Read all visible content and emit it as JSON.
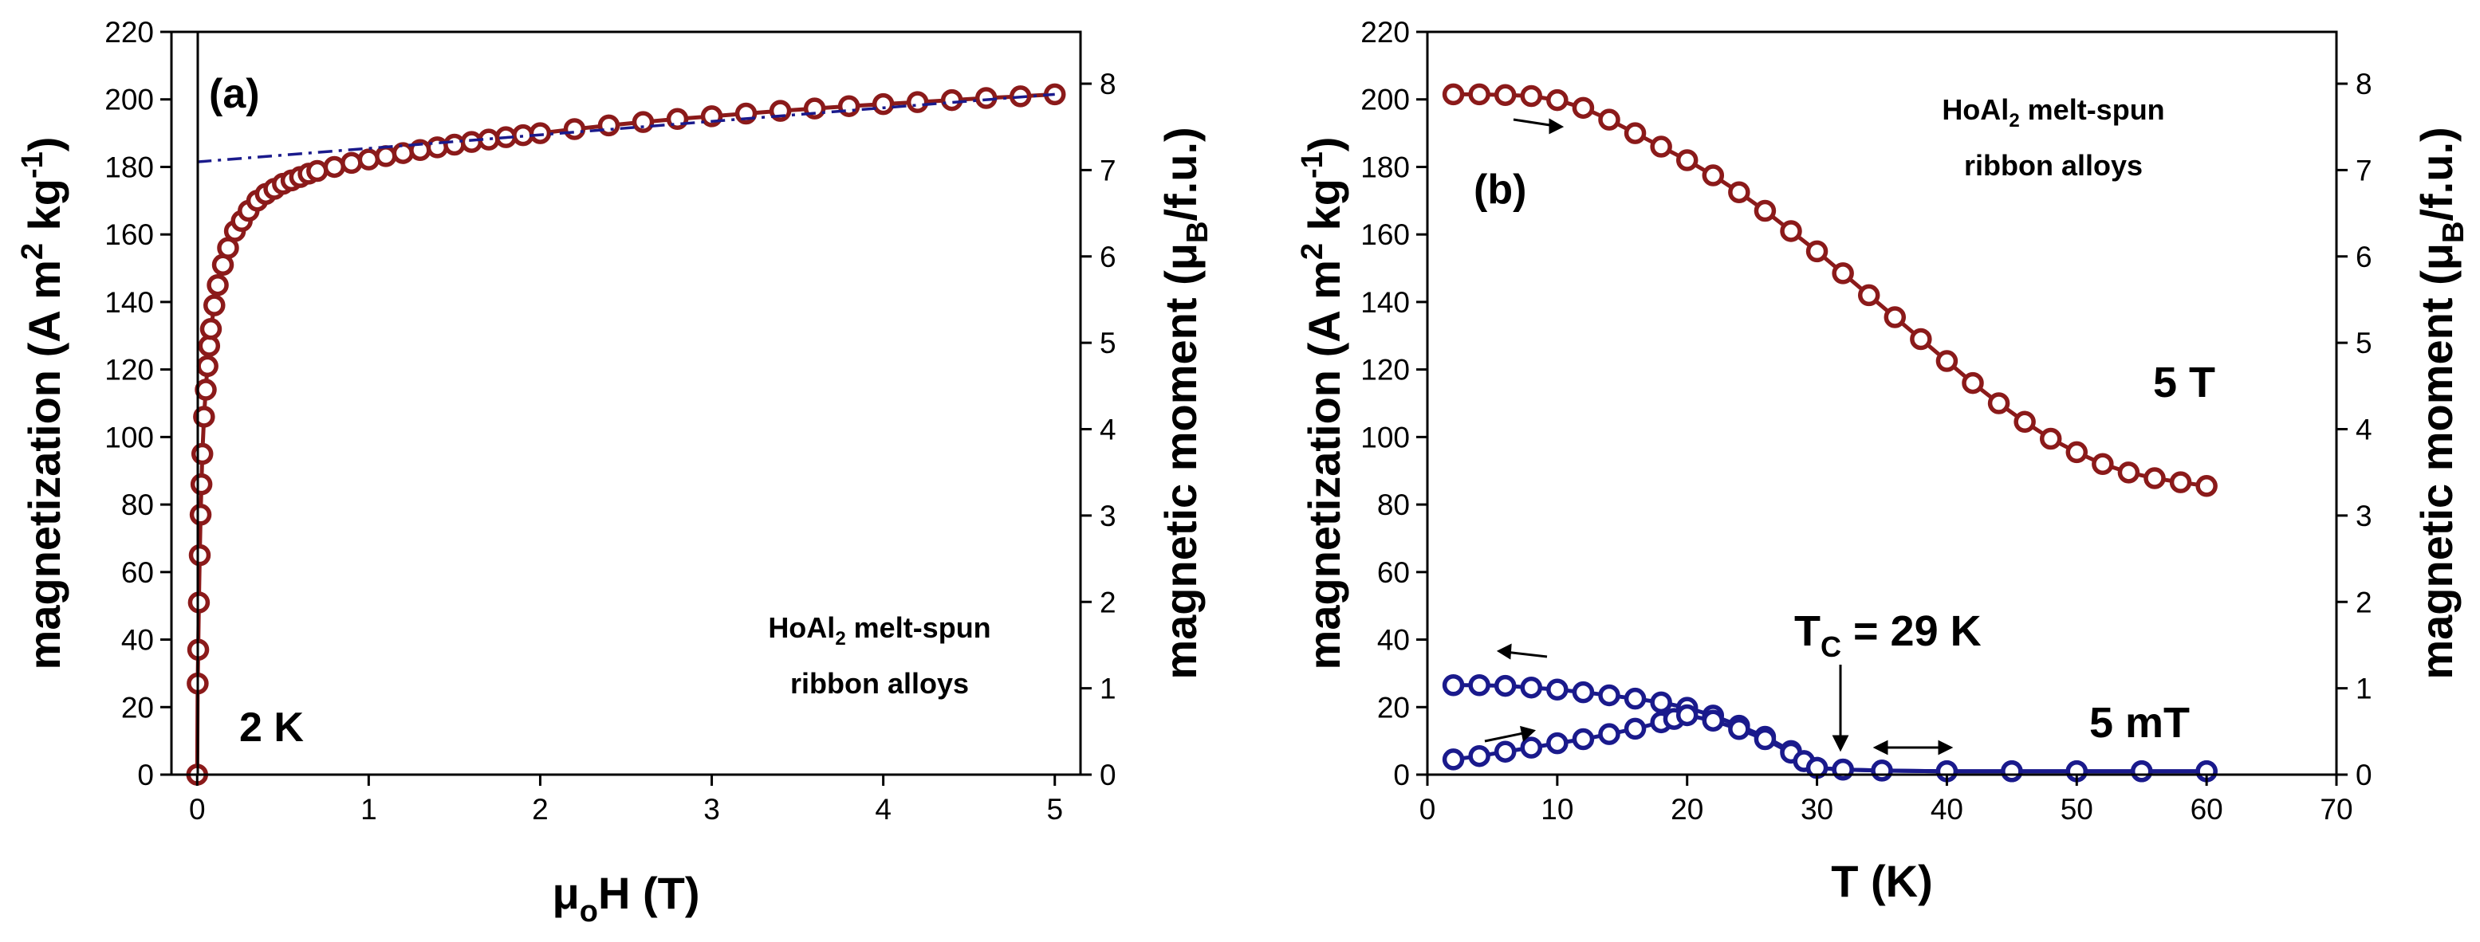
{
  "chart_data": [
    {
      "type": "scatter",
      "panel_label": "(a)",
      "x_axis": {
        "label_mu": "μ",
        "label_sub": "o",
        "label_rest": "H (T)",
        "lim": [
          -0.15,
          5.15
        ],
        "ticks": [
          "0",
          "1",
          "2",
          "3",
          "4",
          "5"
        ]
      },
      "y_left": {
        "label_main": "magnetization (A m",
        "label_sup1": "2",
        "label_mid": " kg",
        "label_sup2": "-1",
        "label_end": ")",
        "lim": [
          0,
          220
        ],
        "ticks": [
          "0",
          "20",
          "40",
          "60",
          "80",
          "100",
          "120",
          "140",
          "160",
          "180",
          "200",
          "220"
        ]
      },
      "y_right": {
        "label_main": "magnetic moment (μ",
        "label_sub": "B",
        "label_end": "/f.u.)",
        "lim": [
          0,
          8.6
        ],
        "ticks": [
          "0",
          "1",
          "2",
          "3",
          "4",
          "5",
          "6",
          "7",
          "8"
        ]
      },
      "annotations": {
        "temperature": "2 K",
        "sample_line1_a": "HoAl",
        "sample_line1_sub": "2",
        "sample_line1_b": " melt-spun",
        "sample_line2": "ribbon alloys"
      },
      "series": [
        {
          "name": "M(H) at 2 K",
          "color": "#8b1a1a",
          "x": [
            0,
            0.003,
            0.006,
            0.01,
            0.015,
            0.02,
            0.025,
            0.03,
            0.04,
            0.05,
            0.06,
            0.07,
            0.08,
            0.1,
            0.12,
            0.15,
            0.18,
            0.22,
            0.26,
            0.3,
            0.35,
            0.4,
            0.45,
            0.5,
            0.55,
            0.6,
            0.65,
            0.7,
            0.8,
            0.9,
            1.0,
            1.1,
            1.2,
            1.3,
            1.4,
            1.5,
            1.6,
            1.7,
            1.8,
            1.9,
            2.0,
            2.2,
            2.4,
            2.6,
            2.8,
            3.0,
            3.2,
            3.4,
            3.6,
            3.8,
            4.0,
            4.2,
            4.4,
            4.6,
            4.8,
            5.0
          ],
          "y": [
            0,
            27,
            37,
            51,
            65,
            77,
            86,
            95,
            106,
            114,
            121,
            127,
            132,
            139,
            145,
            151,
            156,
            161,
            164,
            167,
            170,
            172,
            173.5,
            175,
            176,
            177,
            178,
            178.8,
            180,
            181.2,
            182.2,
            183.2,
            184.1,
            185,
            185.8,
            186.6,
            187.4,
            188.1,
            188.8,
            189.4,
            190,
            191.2,
            192.3,
            193.3,
            194.2,
            195,
            195.8,
            196.6,
            197.3,
            198,
            198.6,
            199.2,
            199.8,
            200.4,
            200.9,
            201.5
          ]
        },
        {
          "name": "linear high-field fit",
          "color": "#1a1a8c",
          "style": "dash-dot",
          "x": [
            0.0,
            5.0
          ],
          "y": [
            181.5,
            201.5
          ]
        }
      ]
    },
    {
      "type": "scatter",
      "panel_label": "(b)",
      "x_axis": {
        "label": "T (K)",
        "lim": [
          0,
          70
        ],
        "ticks": [
          "0",
          "10",
          "20",
          "30",
          "40",
          "50",
          "60",
          "70"
        ]
      },
      "y_left": {
        "label_main": "magnetization (A m",
        "label_sup1": "2",
        "label_mid": " kg",
        "label_sup2": "-1",
        "label_end": ")",
        "lim": [
          0,
          220
        ],
        "ticks": [
          "0",
          "20",
          "40",
          "60",
          "80",
          "100",
          "120",
          "140",
          "160",
          "180",
          "200",
          "220"
        ]
      },
      "y_right": {
        "label_main": "magnetic moment (μ",
        "label_sub": "B",
        "label_end": "/f.u.)",
        "lim": [
          0,
          8.6
        ],
        "ticks": [
          "0",
          "1",
          "2",
          "3",
          "4",
          "5",
          "6",
          "7",
          "8"
        ]
      },
      "annotations": {
        "field_high": "5 T",
        "field_low": "5 mT",
        "tc_main": "T",
        "tc_sub": "C",
        "tc_rest": " = 29 K",
        "sample_line1_a": "HoAl",
        "sample_line1_sub": "2",
        "sample_line1_b": " melt-spun",
        "sample_line2": "ribbon alloys"
      },
      "series": [
        {
          "name": "5 T",
          "color": "#8b1a1a",
          "x": [
            2,
            4,
            6,
            8,
            10,
            12,
            14,
            16,
            18,
            20,
            22,
            24,
            26,
            28,
            30,
            32,
            34,
            36,
            38,
            40,
            42,
            44,
            46,
            48,
            50,
            52,
            54,
            56,
            58,
            60
          ],
          "y": [
            201.5,
            201.5,
            201.3,
            201,
            199.8,
            197.5,
            194,
            190,
            186,
            182,
            177.5,
            172.5,
            167,
            161,
            155,
            148.5,
            142,
            135.5,
            129,
            122.5,
            116,
            110,
            104.5,
            99.5,
            95.5,
            92,
            89.5,
            87.8,
            86.6,
            85.5
          ]
        },
        {
          "name": "5 mT (FC, cooling)",
          "color": "#1a1a8c",
          "x": [
            2,
            4,
            6,
            8,
            10,
            12,
            14,
            16,
            18,
            20,
            22,
            24,
            26,
            28,
            29,
            30,
            32,
            35,
            40,
            45,
            50,
            55,
            60
          ],
          "y": [
            26.5,
            26.5,
            26.3,
            25.8,
            25.2,
            24.4,
            23.5,
            22.5,
            21.4,
            19.8,
            17.5,
            14.5,
            11.2,
            7,
            4,
            2,
            1.5,
            1.2,
            1,
            1,
            1,
            1,
            1
          ]
        },
        {
          "name": "5 mT (ZFC, warming)",
          "color": "#1a1a8c",
          "x": [
            2,
            4,
            6,
            8,
            10,
            12,
            14,
            16,
            18,
            19,
            20,
            22,
            24,
            26,
            28,
            29,
            30,
            32,
            35,
            40,
            45,
            50,
            55,
            60
          ],
          "y": [
            4.5,
            5.5,
            6.8,
            8,
            9.3,
            10.5,
            12,
            13.6,
            15.5,
            16.5,
            17.6,
            16,
            13.5,
            10.5,
            6.5,
            4,
            2,
            1.5,
            1.2,
            1,
            1,
            1,
            1,
            1
          ]
        }
      ]
    }
  ]
}
